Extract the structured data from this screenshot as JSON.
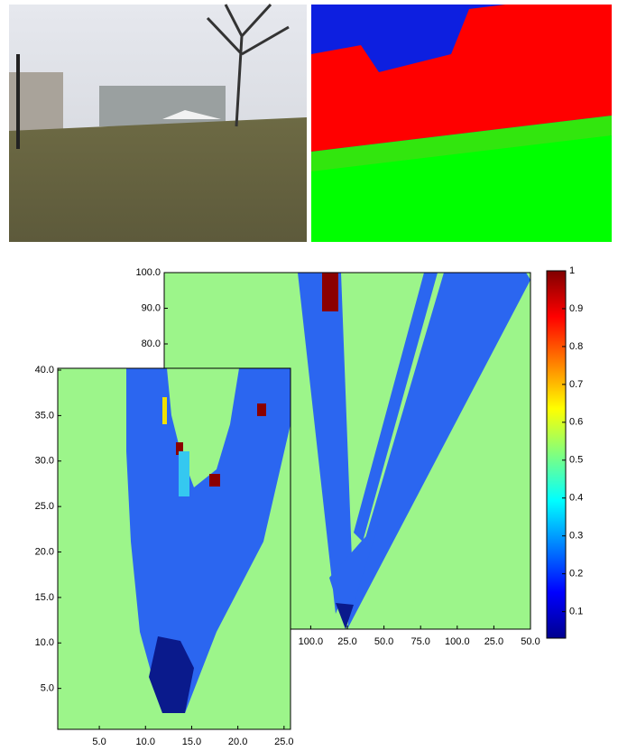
{
  "chart_data": [
    {
      "type": "heatmap",
      "xlim": [
        0,
        250
      ],
      "ylim": [
        0,
        100
      ],
      "xticks": [
        {
          "value": 100,
          "label": "100.0"
        },
        {
          "value": 125,
          "label": "25.0"
        },
        {
          "value": 150,
          "label": "50.0"
        },
        {
          "value": 175,
          "label": "75.0"
        },
        {
          "value": 200,
          "label": "100.0"
        },
        {
          "value": 225,
          "label": "25.0"
        },
        {
          "value": 250,
          "label": "50.0"
        }
      ],
      "yticks": [
        {
          "value": 80,
          "label": "80.0"
        },
        {
          "value": 90,
          "label": "90.0"
        },
        {
          "value": 100,
          "label": "100.0"
        }
      ]
    },
    {
      "type": "heatmap",
      "xlim": [
        0.5,
        25.7
      ],
      "ylim": [
        0.5,
        40.2
      ],
      "xticks": [
        {
          "value": 5,
          "label": "5.0"
        },
        {
          "value": 10,
          "label": "10.0"
        },
        {
          "value": 15,
          "label": "15.0"
        },
        {
          "value": 20,
          "label": "20.0"
        },
        {
          "value": 25,
          "label": "25.0"
        }
      ],
      "yticks": [
        {
          "value": 5,
          "label": "5.0"
        },
        {
          "value": 10,
          "label": "10.0"
        },
        {
          "value": 15,
          "label": "15.0"
        },
        {
          "value": 20,
          "label": "20.0"
        },
        {
          "value": 25,
          "label": "25.0"
        },
        {
          "value": 30,
          "label": "30.0"
        },
        {
          "value": 35,
          "label": "35.0"
        },
        {
          "value": 40,
          "label": "40.0"
        }
      ]
    },
    {
      "type": "colorbar",
      "ylim": [
        0.03,
        1
      ],
      "yticks": [
        0.1,
        0.2,
        0.3,
        0.4,
        0.5,
        0.6,
        0.7,
        0.8,
        0.9,
        1
      ]
    }
  ]
}
